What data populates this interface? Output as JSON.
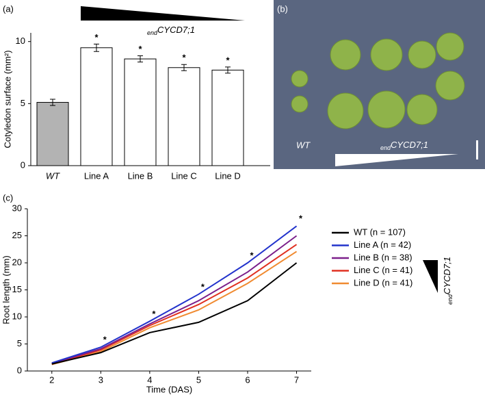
{
  "chart_data": [
    {
      "type": "bar",
      "panel": "(a)",
      "y_label": "Cotyledon surface (mm²)",
      "categories": [
        "WT",
        "Line A",
        "Line B",
        "Line C",
        "Line D"
      ],
      "values": [
        5.1,
        9.5,
        8.6,
        7.9,
        7.7
      ],
      "errors": [
        0.25,
        0.3,
        0.25,
        0.25,
        0.25
      ],
      "colors": [
        "#b3b3b3",
        "#ffffff",
        "#ffffff",
        "#ffffff",
        "#ffffff"
      ],
      "significance": [
        null,
        "*",
        "*",
        "*",
        "*"
      ],
      "gradient": {
        "subscript": "end",
        "label": "CYCD7;1"
      },
      "ylim": [
        0,
        10.7
      ],
      "yticks": [
        0,
        5,
        10
      ]
    },
    {
      "type": "image",
      "panel": "(b)",
      "label": "WT",
      "gradient": {
        "subscript": "end",
        "label": "CYCD7;1"
      }
    },
    {
      "type": "line",
      "panel": "(c)",
      "x_label": "Time (DAS)",
      "y_label": "Root length (mm)",
      "x": [
        2,
        3,
        4,
        5,
        6,
        7
      ],
      "series": [
        {
          "name": "WT (n = 107)",
          "color": "#000000",
          "values": [
            1.3,
            3.4,
            7.1,
            9.0,
            13.0,
            20.0
          ]
        },
        {
          "name": "Line A (n = 42)",
          "color": "#2233cc",
          "values": [
            1.5,
            4.4,
            9.2,
            14.2,
            20.0,
            26.8
          ]
        },
        {
          "name": "Line B (n = 38)",
          "color": "#7b1f8a",
          "values": [
            1.4,
            4.1,
            8.7,
            13.0,
            18.3,
            25.0
          ]
        },
        {
          "name": "Line C (n = 41)",
          "color": "#e03020",
          "values": [
            1.3,
            3.9,
            8.4,
            12.3,
            17.2,
            23.4
          ]
        },
        {
          "name": "Line D (n  = 41)",
          "color": "#f08a30",
          "values": [
            1.2,
            3.6,
            8.0,
            11.3,
            16.2,
            22.1
          ]
        }
      ],
      "significance": [
        null,
        "*",
        "*",
        "*",
        "*",
        "*"
      ],
      "gradient": {
        "subscript": "end",
        "label": "CYCD7;1"
      },
      "xlim": [
        1.5,
        7.3
      ],
      "xticks": [
        2,
        3,
        4,
        5,
        6,
        7
      ],
      "ylim": [
        0,
        30
      ],
      "yticks": [
        0,
        5,
        10,
        15,
        20,
        25,
        30
      ]
    }
  ]
}
